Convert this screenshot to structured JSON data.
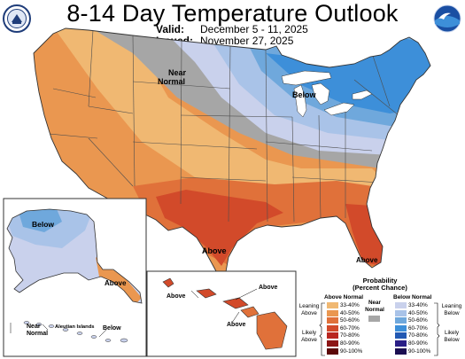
{
  "title": "8-14 Day Temperature Outlook",
  "valid_label": "Valid:",
  "valid_value": "December 5 - 11, 2025",
  "issued_label": "Issued:",
  "issued_value": "November 27, 2025",
  "map_labels": {
    "near_normal": "Near\nNormal",
    "below": "Below",
    "above_south": "Above",
    "alaska_below": "Below",
    "alaska_above": "Above",
    "alaska_near_normal": "Near\nNormal",
    "aleutian_islands": "Aleutian Islands",
    "aleutian_below": "Below",
    "hawaii_above_1": "Above",
    "hawaii_above_2": "Above",
    "hawaii_above_3": "Above",
    "florida_above": "Above"
  },
  "legend": {
    "title": "Probability\n(Percent Chance)",
    "above_normal_heading": "Above Normal",
    "below_normal_heading": "Below Normal",
    "near_normal": "Near\nNormal",
    "leaning_above": "Leaning\nAbove",
    "likely_above": "Likely\nAbove",
    "leaning_below": "Leaning\nBelow",
    "likely_below": "Likely\nBelow",
    "above_bins": [
      {
        "label": "33-40%",
        "color": "#f0b872"
      },
      {
        "label": "40-50%",
        "color": "#ea9750"
      },
      {
        "label": "50-60%",
        "color": "#e0713a"
      },
      {
        "label": "60-70%",
        "color": "#d24a2a"
      },
      {
        "label": "70-80%",
        "color": "#b9261f"
      },
      {
        "label": "80-90%",
        "color": "#8c1414"
      },
      {
        "label": "90-100%",
        "color": "#5c0909"
      }
    ],
    "below_bins": [
      {
        "label": "33-40%",
        "color": "#c9d1ec"
      },
      {
        "label": "40-50%",
        "color": "#a9c3e8"
      },
      {
        "label": "50-60%",
        "color": "#6fa8dc"
      },
      {
        "label": "60-70%",
        "color": "#3d8fd9"
      },
      {
        "label": "70-80%",
        "color": "#2259b3"
      },
      {
        "label": "80-90%",
        "color": "#2a1f86"
      },
      {
        "label": "90-100%",
        "color": "#1b0f52"
      }
    ],
    "near_normal_color": "#a6a6a6"
  },
  "colors": {
    "near_normal": "#a6a6a6",
    "above_33_40": "#f0b872",
    "above_40_50": "#ea9750",
    "above_50_60": "#e0713a",
    "above_60_70": "#d24a2a",
    "below_33_40": "#c9d1ec",
    "below_40_50": "#a9c3e8",
    "below_50_60": "#6fa8dc",
    "below_60_70": "#3d8fd9"
  },
  "icons": {
    "left_logo": "noaa-doc-seal-icon",
    "right_logo": "noaa-bird-logo-icon"
  }
}
